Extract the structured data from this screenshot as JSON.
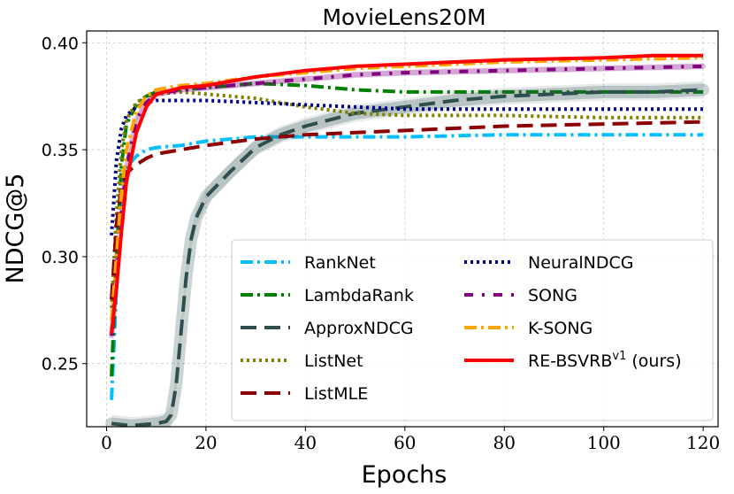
{
  "chart_data": {
    "type": "line",
    "title": "MovieLens20M",
    "xlabel": "Epochs",
    "ylabel": "NDCG@5",
    "xlim": [
      -4,
      123
    ],
    "ylim": [
      0.2205,
      0.4055
    ],
    "xticks": [
      0,
      20,
      40,
      60,
      80,
      100,
      120
    ],
    "yticks": [
      0.25,
      0.3,
      0.35,
      0.4
    ],
    "xtick_labels": [
      "0",
      "20",
      "40",
      "60",
      "80",
      "100",
      "120"
    ],
    "ytick_labels": [
      "0.25",
      "0.30",
      "0.35",
      "0.40"
    ],
    "grid": true,
    "legend_position": "lower-right",
    "series": [
      {
        "name": "RankNet",
        "color": "#00bfff",
        "dash": "dashdot",
        "points": [
          [
            1,
            0.233
          ],
          [
            2,
            0.285
          ],
          [
            3,
            0.328
          ],
          [
            4,
            0.342
          ],
          [
            6,
            0.347
          ],
          [
            8,
            0.35
          ],
          [
            10,
            0.351
          ],
          [
            15,
            0.352
          ],
          [
            20,
            0.354
          ],
          [
            30,
            0.356
          ],
          [
            40,
            0.356
          ],
          [
            50,
            0.356
          ],
          [
            60,
            0.356
          ],
          [
            80,
            0.357
          ],
          [
            100,
            0.357
          ],
          [
            120,
            0.357
          ]
        ]
      },
      {
        "name": "LambdaRank",
        "color": "#008000",
        "dash": "dashdot",
        "points": [
          [
            1,
            0.244
          ],
          [
            2,
            0.3
          ],
          [
            3,
            0.343
          ],
          [
            4,
            0.362
          ],
          [
            6,
            0.371
          ],
          [
            8,
            0.375
          ],
          [
            10,
            0.377
          ],
          [
            15,
            0.378
          ],
          [
            20,
            0.379
          ],
          [
            30,
            0.381
          ],
          [
            40,
            0.38
          ],
          [
            50,
            0.378
          ],
          [
            60,
            0.377
          ],
          [
            80,
            0.377
          ],
          [
            100,
            0.377
          ],
          [
            120,
            0.377
          ]
        ]
      },
      {
        "name": "ApproxNDCG",
        "color": "#2f4f4f",
        "dash": "longdash",
        "band": 0.004,
        "points": [
          [
            1,
            0.222
          ],
          [
            5,
            0.221
          ],
          [
            10,
            0.222
          ],
          [
            12,
            0.223
          ],
          [
            13,
            0.226
          ],
          [
            14,
            0.24
          ],
          [
            15,
            0.265
          ],
          [
            16,
            0.29
          ],
          [
            17,
            0.308
          ],
          [
            18,
            0.318
          ],
          [
            20,
            0.328
          ],
          [
            25,
            0.34
          ],
          [
            30,
            0.351
          ],
          [
            35,
            0.357
          ],
          [
            40,
            0.361
          ],
          [
            50,
            0.367
          ],
          [
            60,
            0.37
          ],
          [
            70,
            0.373
          ],
          [
            80,
            0.375
          ],
          [
            90,
            0.376
          ],
          [
            100,
            0.377
          ],
          [
            110,
            0.377
          ],
          [
            120,
            0.378
          ]
        ]
      },
      {
        "name": "ListNet",
        "color": "#808000",
        "dash": "dotted",
        "points": [
          [
            1,
            0.276
          ],
          [
            2,
            0.32
          ],
          [
            3,
            0.35
          ],
          [
            4,
            0.364
          ],
          [
            6,
            0.372
          ],
          [
            8,
            0.375
          ],
          [
            10,
            0.376
          ],
          [
            15,
            0.377
          ],
          [
            20,
            0.376
          ],
          [
            30,
            0.374
          ],
          [
            40,
            0.37
          ],
          [
            50,
            0.367
          ],
          [
            60,
            0.366
          ],
          [
            80,
            0.366
          ],
          [
            100,
            0.365
          ],
          [
            120,
            0.365
          ]
        ]
      },
      {
        "name": "ListMLE",
        "color": "#8b0000",
        "dash": "longdash",
        "points": [
          [
            1,
            0.28
          ],
          [
            2,
            0.315
          ],
          [
            3,
            0.332
          ],
          [
            4,
            0.339
          ],
          [
            6,
            0.343
          ],
          [
            8,
            0.346
          ],
          [
            10,
            0.348
          ],
          [
            15,
            0.35
          ],
          [
            20,
            0.352
          ],
          [
            30,
            0.355
          ],
          [
            40,
            0.357
          ],
          [
            50,
            0.358
          ],
          [
            60,
            0.359
          ],
          [
            80,
            0.361
          ],
          [
            100,
            0.362
          ],
          [
            120,
            0.363
          ]
        ]
      },
      {
        "name": "NeuralNDCG",
        "color": "#00008b",
        "dash": "dotted",
        "points": [
          [
            1,
            0.31
          ],
          [
            2,
            0.345
          ],
          [
            3,
            0.36
          ],
          [
            4,
            0.366
          ],
          [
            6,
            0.37
          ],
          [
            8,
            0.372
          ],
          [
            10,
            0.373
          ],
          [
            15,
            0.373
          ],
          [
            20,
            0.373
          ],
          [
            30,
            0.372
          ],
          [
            40,
            0.371
          ],
          [
            50,
            0.37
          ],
          [
            60,
            0.369
          ],
          [
            80,
            0.369
          ],
          [
            100,
            0.369
          ],
          [
            120,
            0.369
          ]
        ]
      },
      {
        "name": "SONG",
        "color": "#800080",
        "dash": "dashdotsparse",
        "band": 0.0015,
        "points": [
          [
            1,
            0.263
          ],
          [
            2,
            0.29
          ],
          [
            3,
            0.32
          ],
          [
            4,
            0.342
          ],
          [
            6,
            0.364
          ],
          [
            8,
            0.372
          ],
          [
            10,
            0.376
          ],
          [
            15,
            0.378
          ],
          [
            20,
            0.379
          ],
          [
            30,
            0.381
          ],
          [
            40,
            0.383
          ],
          [
            50,
            0.385
          ],
          [
            60,
            0.386
          ],
          [
            80,
            0.387
          ],
          [
            100,
            0.388
          ],
          [
            120,
            0.389
          ]
        ]
      },
      {
        "name": "K-SONG",
        "color": "#ffa500",
        "dash": "dashdot",
        "points": [
          [
            1,
            0.27
          ],
          [
            2,
            0.3
          ],
          [
            3,
            0.33
          ],
          [
            4,
            0.35
          ],
          [
            6,
            0.368
          ],
          [
            8,
            0.375
          ],
          [
            10,
            0.378
          ],
          [
            15,
            0.38
          ],
          [
            20,
            0.381
          ],
          [
            30,
            0.384
          ],
          [
            40,
            0.386
          ],
          [
            50,
            0.388
          ],
          [
            60,
            0.389
          ],
          [
            80,
            0.391
          ],
          [
            100,
            0.392
          ],
          [
            120,
            0.393
          ]
        ]
      },
      {
        "name": "RE-BSVRB",
        "name_sup": "v1",
        "name_suffix": " (ours)",
        "color": "#ff0000",
        "dash": "solid",
        "points": [
          [
            1,
            0.264
          ],
          [
            2,
            0.285
          ],
          [
            3,
            0.312
          ],
          [
            4,
            0.335
          ],
          [
            6,
            0.358
          ],
          [
            8,
            0.37
          ],
          [
            10,
            0.376
          ],
          [
            15,
            0.379
          ],
          [
            20,
            0.38
          ],
          [
            30,
            0.384
          ],
          [
            40,
            0.387
          ],
          [
            50,
            0.389
          ],
          [
            60,
            0.39
          ],
          [
            80,
            0.392
          ],
          [
            100,
            0.393
          ],
          [
            110,
            0.394
          ],
          [
            120,
            0.394
          ]
        ]
      }
    ]
  }
}
